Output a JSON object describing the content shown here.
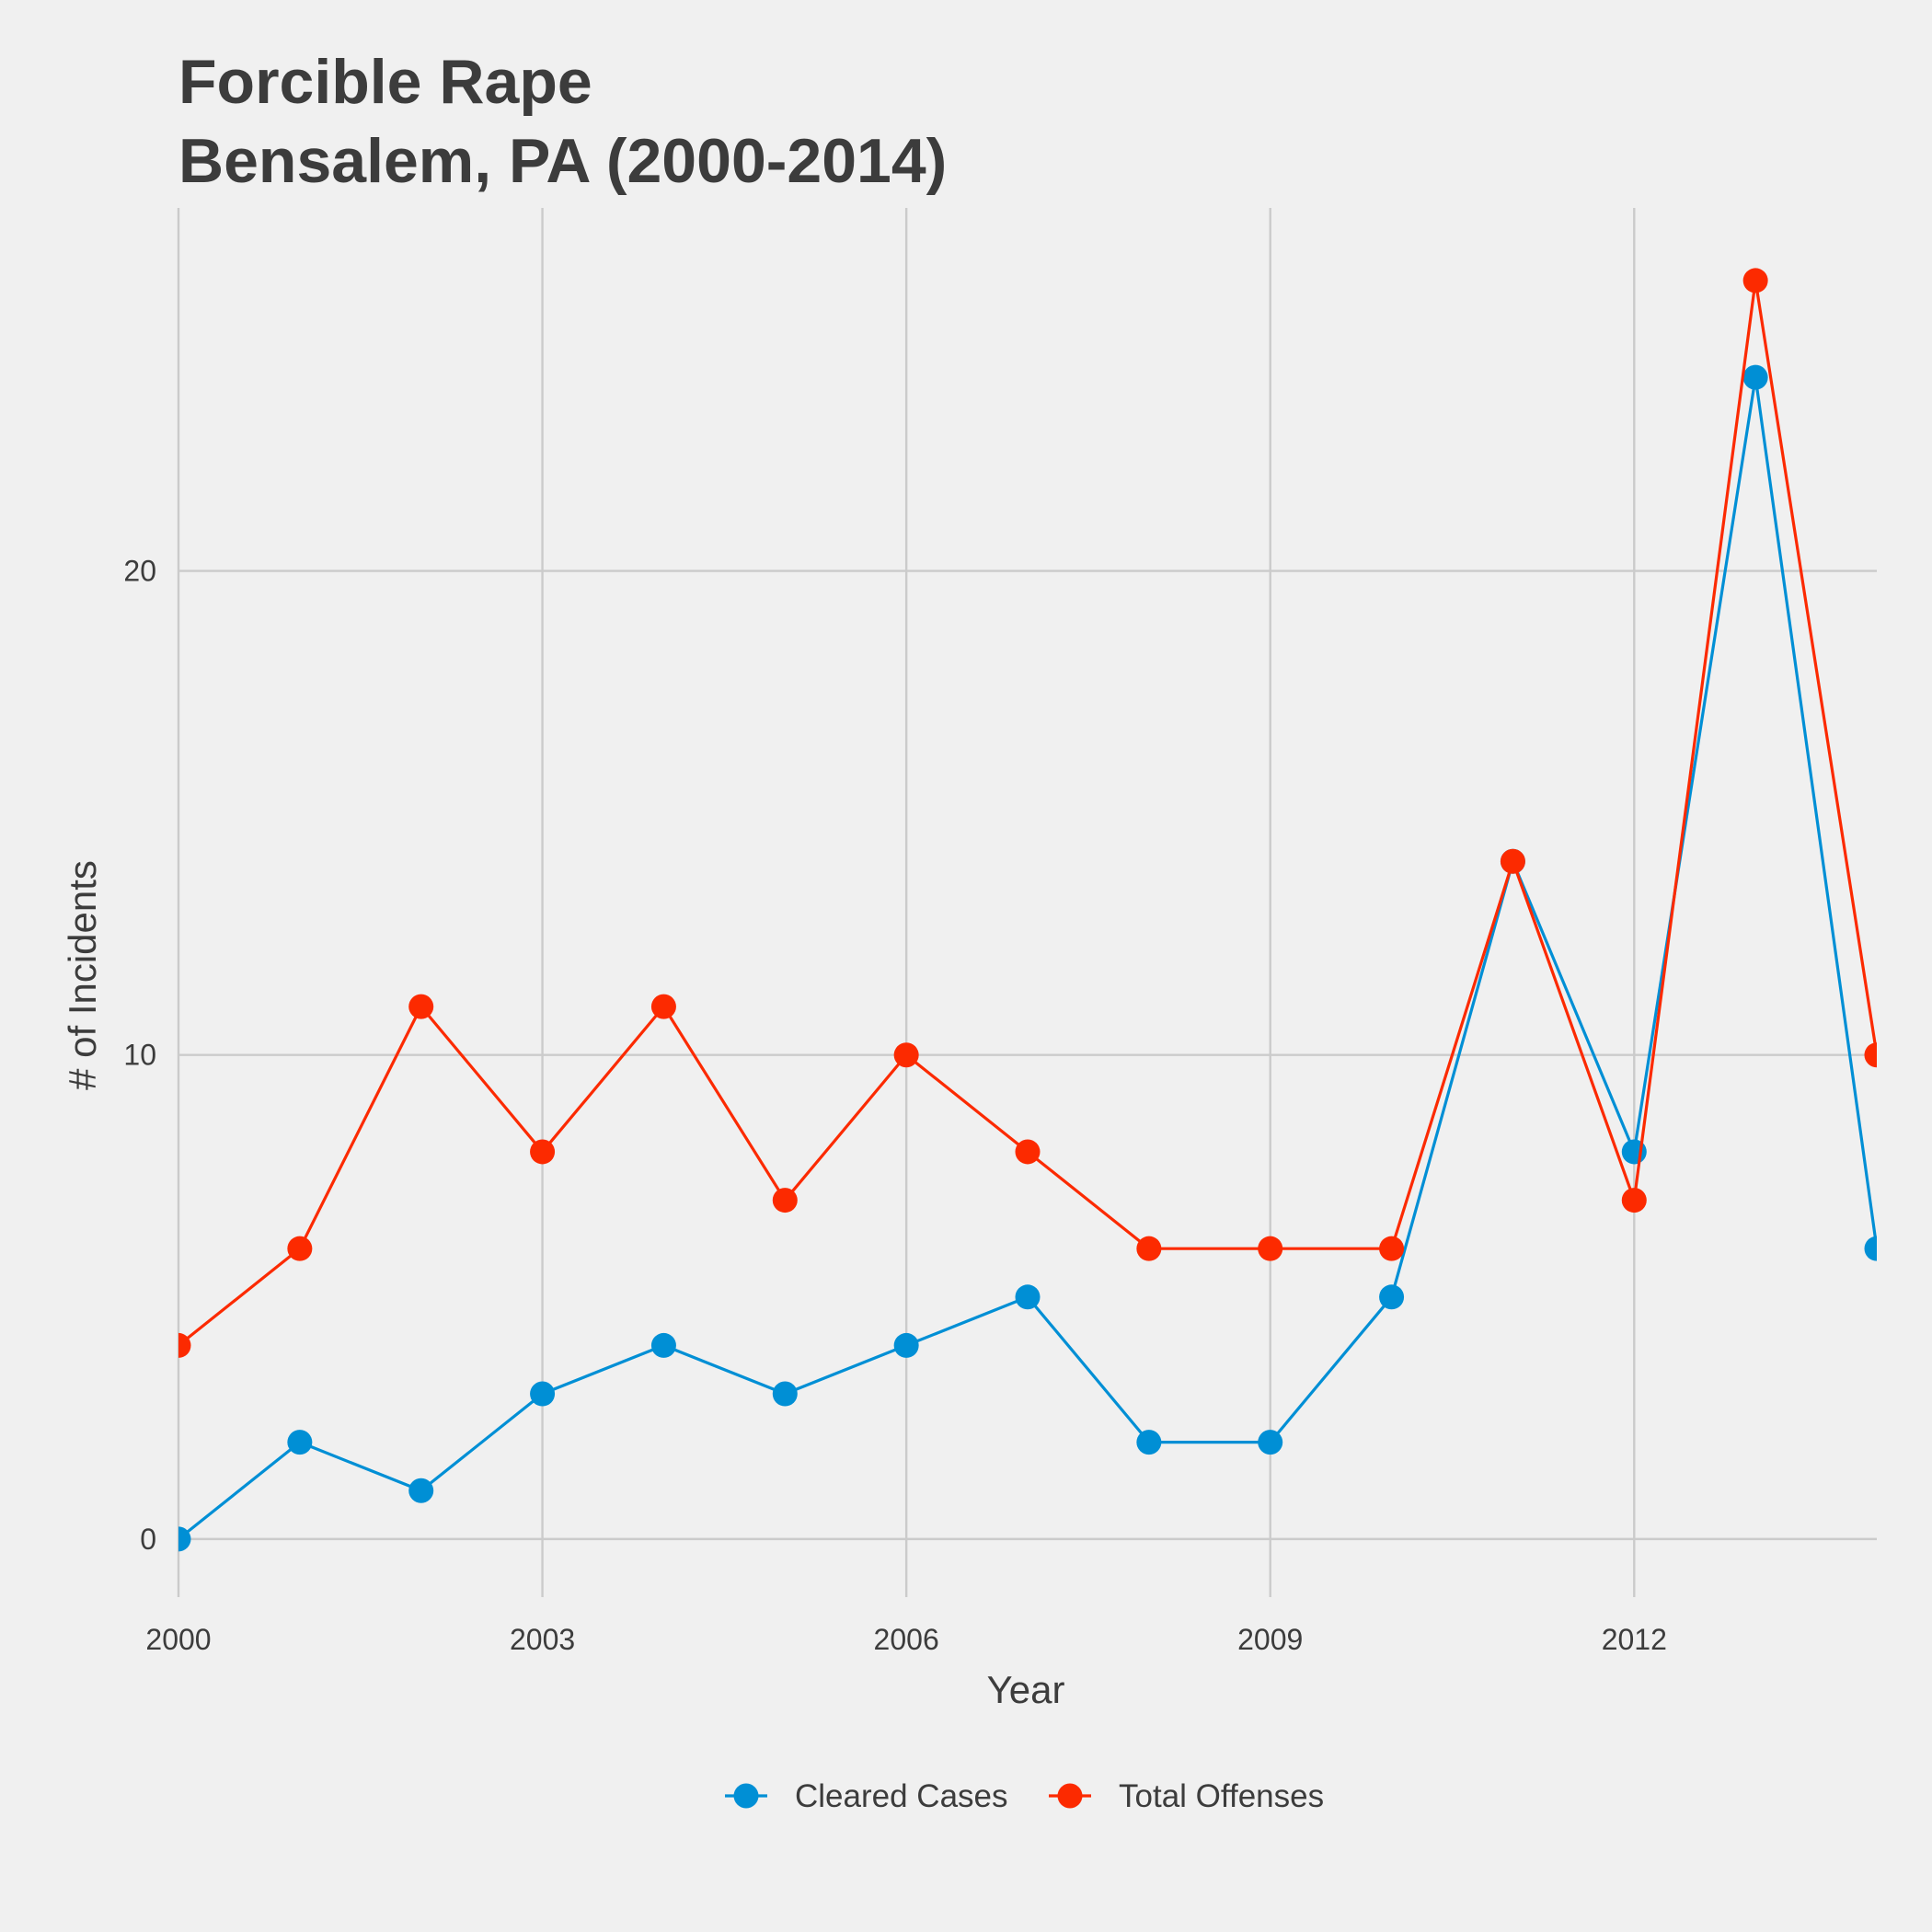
{
  "chart_data": {
    "type": "line",
    "title_line1": "Forcible Rape",
    "title_line2": "Bensalem, PA (2000-2014)",
    "xlabel": "Year",
    "ylabel": "# of Incidents",
    "x": [
      2000,
      2001,
      2002,
      2003,
      2004,
      2005,
      2006,
      2007,
      2008,
      2009,
      2010,
      2011,
      2012,
      2013,
      2014
    ],
    "xlim": [
      2000,
      2014
    ],
    "ylim": [
      -1.2,
      27.5
    ],
    "x_ticks": [
      "2000",
      "2003",
      "2006",
      "2009",
      "2012"
    ],
    "y_ticks": [
      "0",
      "10",
      "20"
    ],
    "grid": true,
    "legend_position": "bottom",
    "series": [
      {
        "name": "Cleared Cases",
        "color": "#008fd5",
        "values": [
          0,
          2,
          1,
          3,
          4,
          3,
          4,
          5,
          2,
          2,
          5,
          14,
          8,
          24,
          6
        ]
      },
      {
        "name": "Total Offenses",
        "color": "#fc2a00",
        "values": [
          4,
          6,
          11,
          8,
          11,
          7,
          10,
          8,
          6,
          6,
          6,
          14,
          7,
          26,
          10
        ]
      }
    ]
  }
}
